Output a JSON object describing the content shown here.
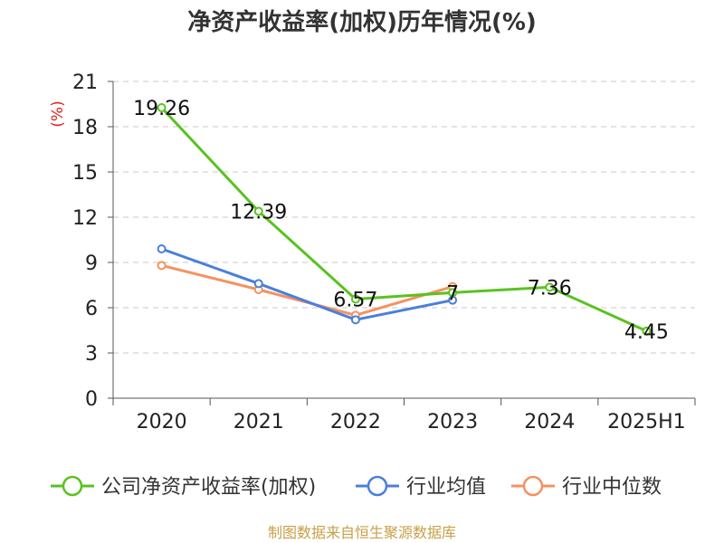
{
  "chart_data": {
    "type": "line",
    "title": "净资产收益率(加权)历年情况(%)",
    "ylabel": "(%)",
    "xlabel": "",
    "categories": [
      "2020",
      "2021",
      "2022",
      "2023",
      "2024",
      "2025H1"
    ],
    "ylim": [
      0,
      21
    ],
    "yticks": [
      0,
      3,
      6,
      9,
      12,
      15,
      18,
      21
    ],
    "grid": true,
    "legend_position": "bottom",
    "series": [
      {
        "name": "公司净资产收益率(加权)",
        "color": "#5ac220",
        "values": [
          19.26,
          12.39,
          6.57,
          7,
          7.36,
          4.45
        ],
        "labels": [
          "19.26",
          "12.39",
          "6.57",
          "7",
          "7.36",
          "4.45"
        ]
      },
      {
        "name": "行业均值",
        "color": "#4a7fdc",
        "values": [
          9.9,
          7.6,
          5.2,
          6.5,
          null,
          null
        ]
      },
      {
        "name": "行业中位数",
        "color": "#f49262",
        "values": [
          8.8,
          7.2,
          5.5,
          7.4,
          null,
          null
        ]
      }
    ]
  },
  "footer": "制图数据来自恒生聚源数据库"
}
